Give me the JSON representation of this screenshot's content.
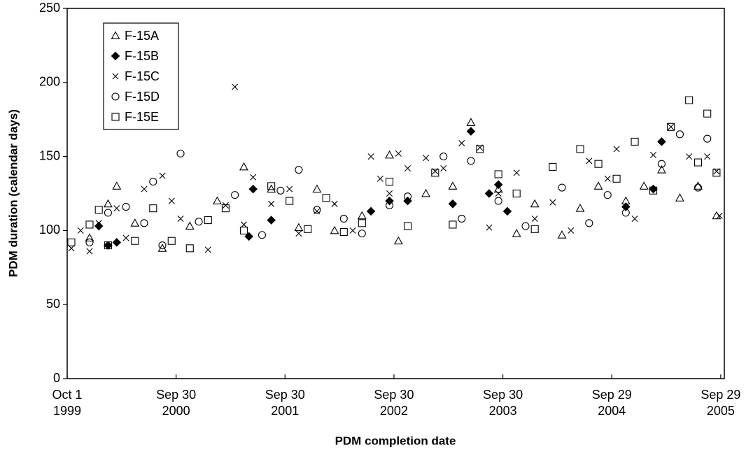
{
  "chart_data": {
    "type": "scatter",
    "xlabel": "PDM completion date",
    "ylabel": "PDM duration (calendar days)",
    "xlim": [
      "1999-10-01",
      "2005-10-11"
    ],
    "ylim": [
      0,
      250
    ],
    "yticks": [
      0,
      50,
      100,
      150,
      200,
      250
    ],
    "xticks": [
      {
        "value": "1999-10-01",
        "label": [
          "Oct 1",
          "1999"
        ]
      },
      {
        "value": "2000-09-30",
        "label": [
          "Sep 30",
          "2000"
        ]
      },
      {
        "value": "2001-09-30",
        "label": [
          "Sep 30",
          "2001"
        ]
      },
      {
        "value": "2002-09-30",
        "label": [
          "Sep 30",
          "2002"
        ]
      },
      {
        "value": "2003-09-30",
        "label": [
          "Sep 30",
          "2003"
        ]
      },
      {
        "value": "2004-09-29",
        "label": [
          "Sep 29",
          "2004"
        ]
      },
      {
        "value": "2005-09-29",
        "label": [
          "Sep 29",
          "2005"
        ]
      }
    ],
    "legend": "upper left",
    "series": [
      {
        "name": "F-15A",
        "marker": "triangle",
        "color": "#000000",
        "x": [
          "1999-12-15",
          "2000-02-15",
          "2000-03-15",
          "2000-05-15",
          "2000-08-15",
          "2000-11-15",
          "2001-02-15",
          "2001-05-15",
          "2001-08-15",
          "2001-11-15",
          "2002-01-15",
          "2002-03-15",
          "2002-06-15",
          "2002-09-15",
          "2002-10-15",
          "2003-01-15",
          "2003-04-15",
          "2003-06-15",
          "2003-09-15",
          "2003-11-15",
          "2004-01-15",
          "2004-04-15",
          "2004-06-15",
          "2004-08-15",
          "2004-11-15",
          "2005-01-15",
          "2005-03-15",
          "2005-05-15",
          "2005-07-15",
          "2005-09-15"
        ],
        "values": [
          95,
          118,
          130,
          105,
          88,
          103,
          120,
          143,
          128,
          102,
          128,
          100,
          110,
          151,
          93,
          125,
          130,
          173,
          128,
          98,
          118,
          97,
          115,
          130,
          120,
          130,
          141,
          122,
          130,
          110
        ]
      },
      {
        "name": "F-15B",
        "marker": "diamond",
        "color": "#000000",
        "x": [
          "2000-01-15",
          "2000-02-15",
          "2000-03-15",
          "2001-06-15",
          "2001-06-01",
          "2001-08-15",
          "2002-07-15",
          "2002-09-15",
          "2002-11-15",
          "2003-04-15",
          "2003-06-15",
          "2003-08-15",
          "2003-09-15",
          "2003-10-15",
          "2004-11-15",
          "2005-02-15",
          "2005-03-15"
        ],
        "values": [
          103,
          90,
          92,
          128,
          96,
          107,
          113,
          120,
          120,
          118,
          167,
          125,
          131,
          113,
          116,
          128,
          160
        ]
      },
      {
        "name": "F-15C",
        "marker": "x",
        "color": "#000000",
        "x": [
          "1999-10-15",
          "1999-11-15",
          "1999-12-15",
          "2000-01-15",
          "2000-03-15",
          "2000-04-15",
          "2000-06-15",
          "2000-08-15",
          "2000-09-15",
          "2000-10-15",
          "2001-01-15",
          "2001-03-15",
          "2001-04-15",
          "2001-05-15",
          "2001-06-15",
          "2001-08-15",
          "2001-10-15",
          "2001-11-15",
          "2002-01-15",
          "2002-03-15",
          "2002-05-15",
          "2002-07-15",
          "2002-08-15",
          "2002-09-15",
          "2002-10-15",
          "2002-11-15",
          "2003-01-15",
          "2003-02-15",
          "2003-03-15",
          "2003-05-15",
          "2003-07-15",
          "2003-08-15",
          "2003-09-15",
          "2003-11-15",
          "2004-01-15",
          "2004-03-15",
          "2004-05-15",
          "2004-07-15",
          "2004-09-15",
          "2004-10-15",
          "2004-12-15",
          "2005-02-15",
          "2005-04-15",
          "2005-06-15",
          "2005-08-15",
          "2005-09-15",
          "2005-09-25"
        ],
        "values": [
          88,
          100,
          86,
          105,
          115,
          95,
          128,
          137,
          120,
          108,
          87,
          117,
          197,
          104,
          136,
          118,
          128,
          98,
          113,
          118,
          100,
          150,
          135,
          125,
          152,
          142,
          149,
          140,
          142,
          159,
          156,
          102,
          125,
          139,
          108,
          119,
          100,
          147,
          135,
          155,
          108,
          151,
          170,
          150,
          150,
          140,
          110
        ]
      },
      {
        "name": "F-15D",
        "marker": "circle",
        "color": "#000000",
        "x": [
          "1999-12-15",
          "2000-02-15",
          "2000-04-15",
          "2000-06-15",
          "2000-07-15",
          "2000-08-15",
          "2000-10-15",
          "2000-12-15",
          "2001-04-15",
          "2001-07-15",
          "2001-09-15",
          "2001-11-15",
          "2002-01-15",
          "2002-04-15",
          "2002-06-15",
          "2002-09-15",
          "2002-11-15",
          "2003-03-15",
          "2003-05-15",
          "2003-06-15",
          "2003-09-15",
          "2003-12-15",
          "2004-04-15",
          "2004-07-15",
          "2004-09-15",
          "2004-11-15",
          "2005-03-15",
          "2005-05-15",
          "2005-07-15",
          "2005-08-15"
        ],
        "values": [
          92,
          112,
          116,
          105,
          133,
          90,
          152,
          106,
          124,
          97,
          127,
          141,
          114,
          108,
          98,
          117,
          123,
          150,
          108,
          147,
          120,
          103,
          129,
          105,
          124,
          112,
          145,
          165,
          129,
          162
        ]
      },
      {
        "name": "F-15E",
        "marker": "square",
        "color": "#000000",
        "x": [
          "1999-10-15",
          "1999-12-15",
          "2000-01-15",
          "2000-02-15",
          "2000-05-15",
          "2000-07-15",
          "2000-09-15",
          "2000-11-15",
          "2001-01-15",
          "2001-03-15",
          "2001-05-15",
          "2001-08-15",
          "2001-10-15",
          "2001-12-15",
          "2002-02-15",
          "2002-04-15",
          "2002-06-15",
          "2002-09-15",
          "2002-11-15",
          "2003-02-15",
          "2003-04-15",
          "2003-07-15",
          "2003-09-15",
          "2003-11-15",
          "2004-01-15",
          "2004-03-15",
          "2004-06-15",
          "2004-08-15",
          "2004-10-15",
          "2004-12-15",
          "2005-02-15",
          "2005-04-15",
          "2005-06-15",
          "2005-07-15",
          "2005-08-15",
          "2005-09-15"
        ],
        "values": [
          92,
          104,
          114,
          90,
          93,
          115,
          93,
          88,
          107,
          115,
          100,
          130,
          120,
          101,
          122,
          99,
          105,
          133,
          103,
          139,
          104,
          155,
          138,
          125,
          101,
          143,
          155,
          145,
          135,
          160,
          127,
          170,
          188,
          146,
          179,
          139
        ]
      }
    ]
  }
}
